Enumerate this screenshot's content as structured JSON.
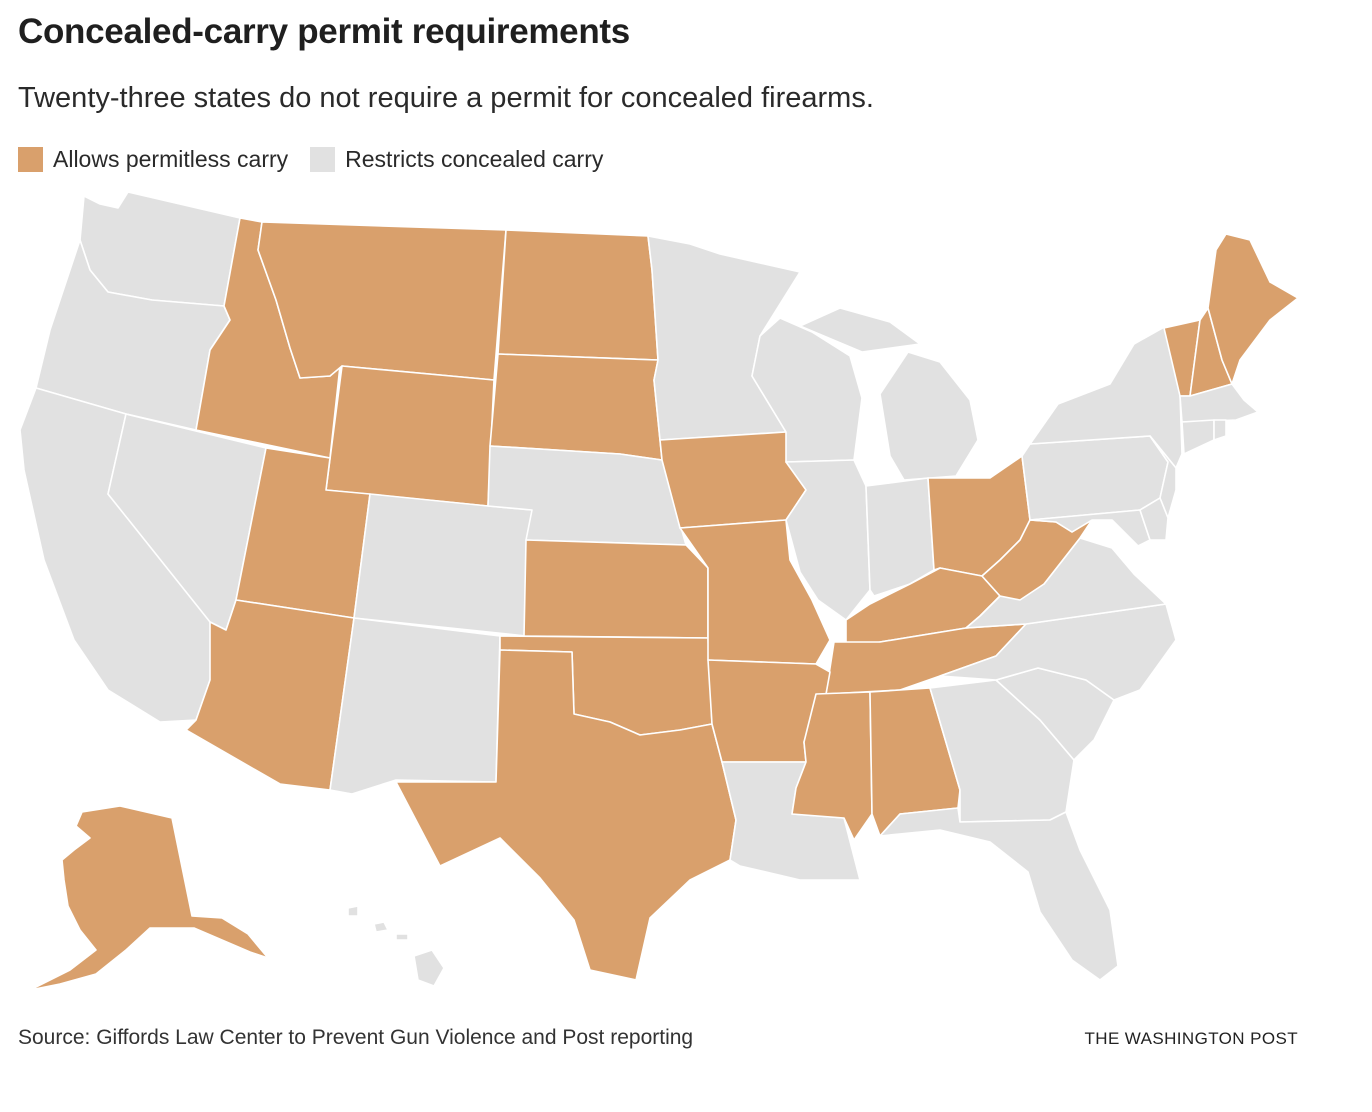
{
  "header": {
    "title": "Concealed-carry permit requirements",
    "subtitle": "Twenty-three states do not require a permit for concealed firearms."
  },
  "legend": {
    "items": [
      {
        "label": "Allows permitless carry",
        "color": "#d9a06c"
      },
      {
        "label": "Restricts concealed carry",
        "color": "#e1e1e1"
      }
    ]
  },
  "map": {
    "permitless_states": [
      "AK",
      "AZ",
      "ID",
      "MT",
      "WY",
      "UT",
      "ND",
      "SD",
      "KS",
      "OK",
      "TX",
      "IA",
      "MO",
      "AR",
      "MS",
      "AL",
      "TN",
      "KY",
      "OH",
      "WV",
      "VT",
      "NH",
      "ME"
    ],
    "colors": {
      "permitless": "#d9a06c",
      "restricted": "#e1e1e1",
      "border": "#ffffff"
    }
  },
  "footer": {
    "source": "Source: Giffords Law Center to Prevent Gun Violence and Post reporting",
    "credit": "THE WASHINGTON POST"
  }
}
